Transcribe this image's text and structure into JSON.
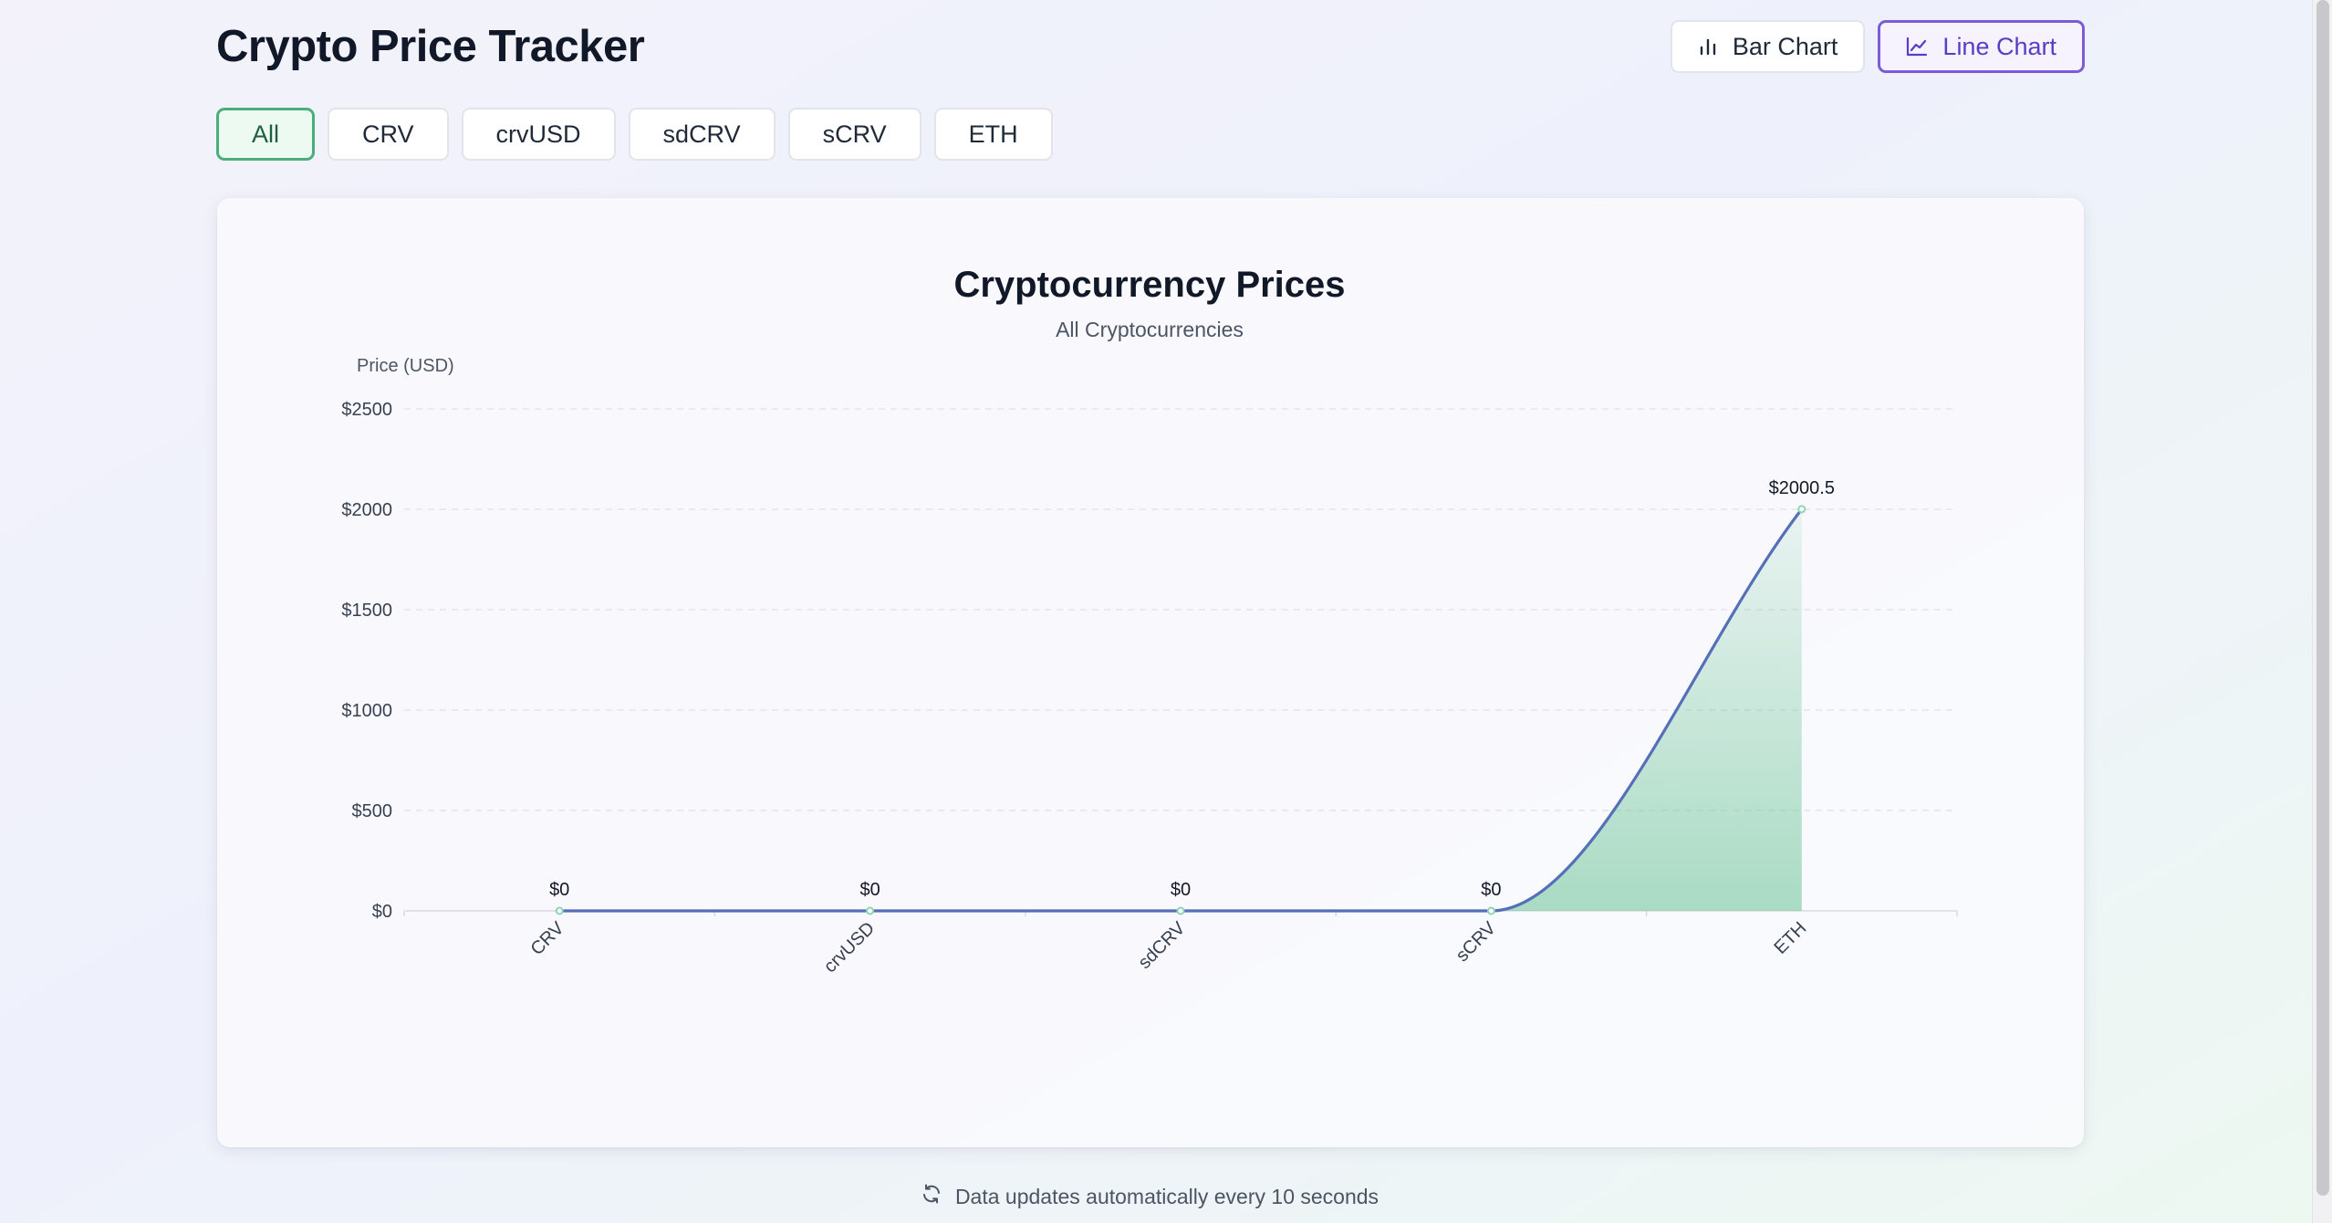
{
  "header": {
    "title": "Crypto Price Tracker",
    "bar_chart_label": "Bar Chart",
    "line_chart_label": "Line Chart"
  },
  "filters": [
    "All",
    "CRV",
    "crvUSD",
    "sdCRV",
    "sCRV",
    "ETH"
  ],
  "footer": {
    "text": "Data updates automatically every 10 seconds"
  },
  "colors": {
    "line": "#5570b8",
    "area": "#74c69d",
    "accent": "#7c5cd6",
    "filter_active": "#4aae7c"
  },
  "chart_data": {
    "type": "line",
    "title": "Cryptocurrency Prices",
    "subtitle": "All Cryptocurrencies",
    "ylabel": "Price (USD)",
    "xlabel": "",
    "categories": [
      "CRV",
      "crvUSD",
      "sdCRV",
      "sCRV",
      "ETH"
    ],
    "values": [
      0,
      0,
      0,
      0,
      2000.5
    ],
    "data_labels": [
      "$0",
      "$0",
      "$0",
      "$0",
      "$2000.5"
    ],
    "ylim": [
      0,
      2500
    ],
    "y_ticks": [
      0,
      500,
      1000,
      1500,
      2000,
      2500
    ],
    "y_tick_labels": [
      "$0",
      "$500",
      "$1000",
      "$1500",
      "$2000",
      "$2500"
    ],
    "grid": true,
    "area_fill": true
  }
}
